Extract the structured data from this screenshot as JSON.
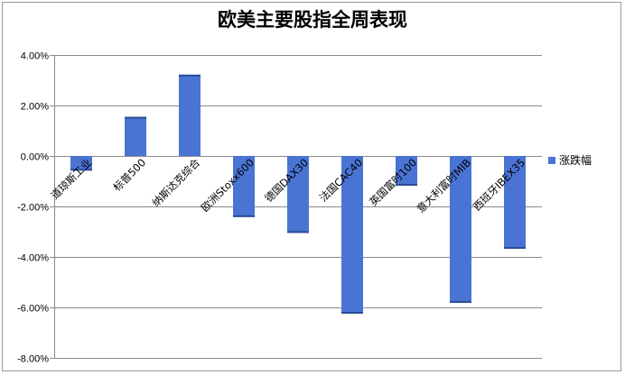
{
  "chart_data": {
    "type": "bar",
    "title": "欧美主要股指全周表现",
    "categories": [
      "道琼斯工业",
      "标普500",
      "纳斯达克综合",
      "欧洲Stoxx600",
      "德国DAX30",
      "法国CAC40",
      "英国富时100",
      "意大利富时MIB",
      "西班牙IBEX35"
    ],
    "series": [
      {
        "name": "涨跌幅",
        "values": [
          -0.58,
          1.55,
          3.22,
          -2.42,
          -3.05,
          -6.25,
          -1.18,
          -5.82,
          -3.68
        ]
      }
    ],
    "ylim": [
      -8,
      4
    ],
    "ytick_step": 2,
    "ytick_labels": [
      "4.00%",
      "2.00%",
      "0.00%",
      "-2.00%",
      "-4.00%",
      "-6.00%",
      "-8.00%"
    ],
    "grid": true,
    "legend_position": "right",
    "colors": {
      "bar": "#4a74d4",
      "bar_dark": "#2c4c96",
      "grid": "#8a8a8a",
      "axis": "#8a8a8a"
    }
  }
}
